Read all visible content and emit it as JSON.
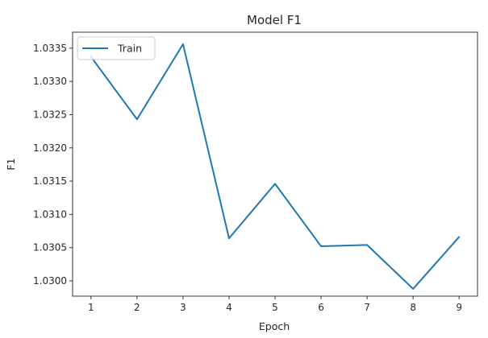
{
  "chart_data": {
    "type": "line",
    "title": "Model F1",
    "xlabel": "Epoch",
    "ylabel": "F1",
    "x": [
      1,
      2,
      3,
      4,
      5,
      6,
      7,
      8,
      9
    ],
    "series": [
      {
        "name": "Train",
        "color": "#1f77b4",
        "values": [
          1.03337,
          1.03243,
          1.03356,
          1.03064,
          1.03146,
          1.03052,
          1.03054,
          1.02988,
          1.03066
        ]
      }
    ],
    "xlim": [
      0.6,
      9.4
    ],
    "ylim": [
      1.02977,
      1.03374
    ],
    "x_ticks": [
      1,
      2,
      3,
      4,
      5,
      6,
      7,
      8,
      9
    ],
    "y_ticks": [
      1.03,
      1.0305,
      1.031,
      1.0315,
      1.032,
      1.0325,
      1.033,
      1.0335
    ],
    "y_tick_labels": [
      "1.0300",
      "1.0305",
      "1.0310",
      "1.0315",
      "1.0320",
      "1.0325",
      "1.0330",
      "1.0335"
    ],
    "grid": false,
    "legend_position": "upper-left"
  }
}
